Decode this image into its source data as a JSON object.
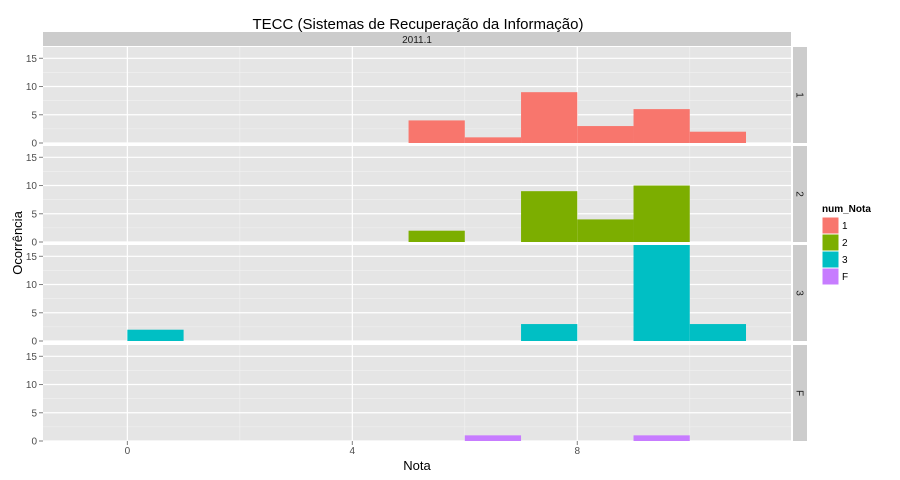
{
  "chart_data": {
    "type": "bar",
    "title": "TECC (Sistemas de Recuperação da Informação)",
    "facet_column": "2011.1",
    "xlabel": "Nota",
    "ylabel": "Ocorrência",
    "xlim": [
      -1.5,
      11.8
    ],
    "ylim": [
      0,
      17
    ],
    "x_ticks": [
      0,
      4,
      8
    ],
    "y_ticks": [
      0,
      5,
      10,
      15
    ],
    "bin_width": 1,
    "grid": true,
    "legend": {
      "title": "num_Nota",
      "placement": "right",
      "items": [
        {
          "label": "1",
          "color": "#F8766D"
        },
        {
          "label": "2",
          "color": "#7CAE00"
        },
        {
          "label": "3",
          "color": "#00BFC4"
        },
        {
          "label": "F",
          "color": "#C77CFF"
        }
      ]
    },
    "series": [
      {
        "name": "1",
        "color": "#F8766D",
        "bins": [
          {
            "x": 5,
            "count": 4
          },
          {
            "x": 6,
            "count": 1
          },
          {
            "x": 7,
            "count": 9
          },
          {
            "x": 8,
            "count": 3
          },
          {
            "x": 9,
            "count": 6
          },
          {
            "x": 10,
            "count": 2
          }
        ]
      },
      {
        "name": "2",
        "color": "#7CAE00",
        "bins": [
          {
            "x": 5,
            "count": 2
          },
          {
            "x": 7,
            "count": 9
          },
          {
            "x": 8,
            "count": 4
          },
          {
            "x": 9,
            "count": 10
          }
        ]
      },
      {
        "name": "3",
        "color": "#00BFC4",
        "bins": [
          {
            "x": 0,
            "count": 2
          },
          {
            "x": 7,
            "count": 3
          },
          {
            "x": 9,
            "count": 17
          },
          {
            "x": 10,
            "count": 3
          }
        ]
      },
      {
        "name": "F",
        "color": "#C77CFF",
        "bins": [
          {
            "x": 6,
            "count": 1
          },
          {
            "x": 9,
            "count": 1
          }
        ]
      }
    ]
  }
}
